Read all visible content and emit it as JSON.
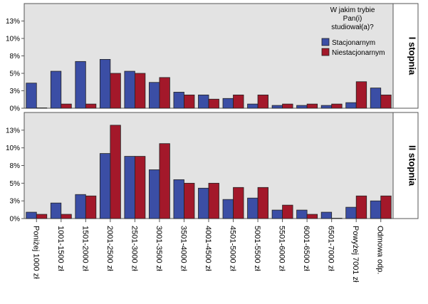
{
  "chart_data": {
    "type": "bar",
    "legend": {
      "title": "W jakim trybie Pan(i) studiował(a)?",
      "title_lines": [
        "W jakim trybie",
        "Pan(i)",
        "studiował(a)?"
      ],
      "placement": "top-right, inside top panel"
    },
    "y_ticks": [
      "0%",
      "3%",
      "5%",
      "8%",
      "10%",
      "13%"
    ],
    "y_tick_values": [
      0,
      2.5,
      5,
      7.5,
      10,
      12.5
    ],
    "ylim": [
      0,
      15
    ],
    "grid": false,
    "categories": [
      "Poniżej 1000 zł",
      "1001-1500 zł",
      "1501-2000 zł",
      "2001-2500 zł",
      "2501-3000 zł",
      "3001-3500 zł",
      "3501-4000 zł",
      "4001-4500 zł",
      "4501-5000 zł",
      "5001-5500 zł",
      "5501-6000 zł",
      "6001-6500 zł",
      "6501-7000 zł",
      "Powyżej 7001 zł",
      "Odmowa odp."
    ],
    "colors": {
      "Stacjonarnym": "#3b4ea5",
      "Niestacjonarnym": "#a3182a",
      "panel_bg": "#e3e3e3"
    },
    "panels": [
      {
        "strip_label": "I stopnia",
        "series": [
          {
            "name": "Stacjonarnym",
            "values": [
              3.6,
              5.3,
              6.7,
              7.0,
              5.3,
              3.7,
              2.3,
              1.9,
              1.4,
              0.6,
              0.4,
              0.4,
              0.4,
              0.8,
              2.9
            ]
          },
          {
            "name": "Niestacjonarnym",
            "values": [
              0,
              0.6,
              0.6,
              5.0,
              5.0,
              4.4,
              1.9,
              1.3,
              1.9,
              1.9,
              0.6,
              0.6,
              0.6,
              3.8,
              1.9
            ]
          }
        ]
      },
      {
        "strip_label": "II stopnia",
        "series": [
          {
            "name": "Stacjonarnym",
            "values": [
              0.9,
              2.2,
              3.4,
              9.2,
              8.8,
              6.9,
              5.5,
              4.3,
              2.7,
              2.9,
              1.2,
              1.2,
              0.9,
              1.6,
              2.5
            ]
          },
          {
            "name": "Niestacjonarnym",
            "values": [
              0.6,
              0.6,
              3.2,
              13.2,
              8.8,
              10.6,
              5.0,
              5.0,
              4.4,
              4.4,
              1.9,
              0.6,
              0,
              3.2,
              3.2
            ]
          }
        ]
      }
    ]
  }
}
